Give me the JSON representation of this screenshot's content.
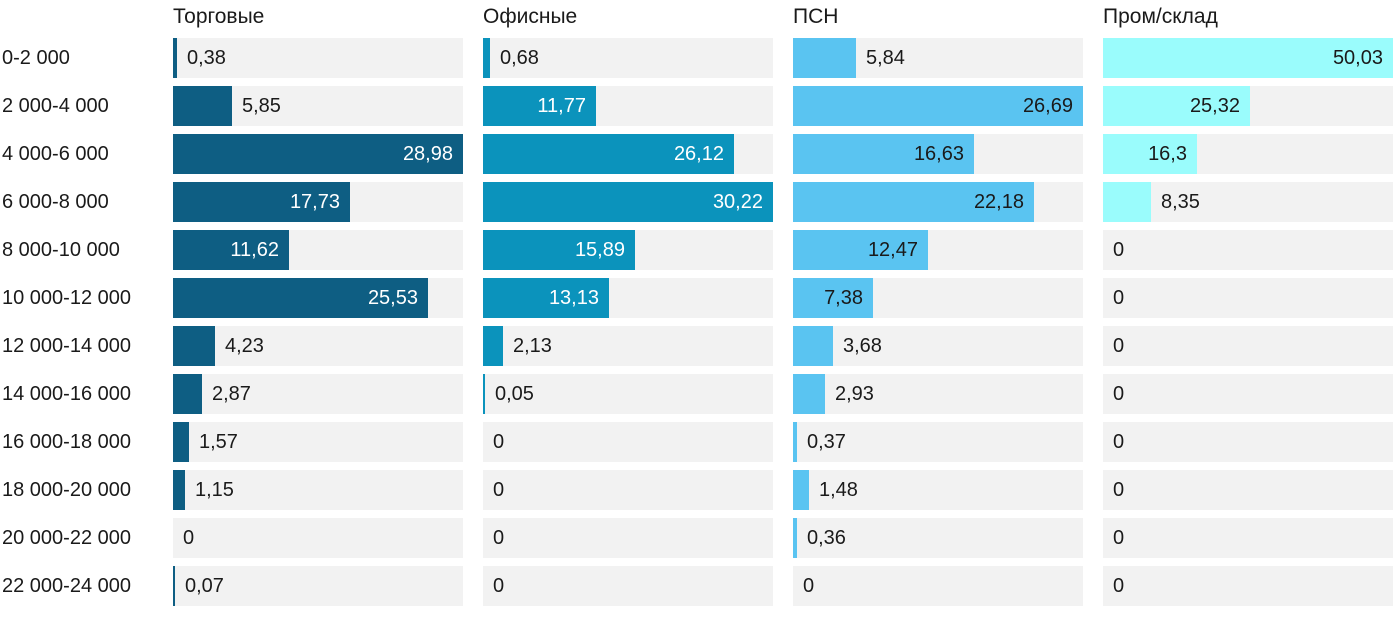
{
  "chart_data": {
    "type": "bar",
    "orientation": "horizontal",
    "title": "",
    "xlabel": "",
    "ylabel": "",
    "normalization": "per-column-max",
    "grid": false,
    "legend_position": "column-headers",
    "categories": [
      "0-2 000",
      "2 000-4 000",
      "4 000-6 000",
      "6 000-8 000",
      "8 000-10 000",
      "10 000-12 000",
      "12 000-14 000",
      "14 000-16 000",
      "16 000-18 000",
      "18 000-20 000",
      "20 000-22 000",
      "22 000-24 000"
    ],
    "series": [
      {
        "name": "Торговые",
        "color": "#0e5e83",
        "inside_label_color": "#ffffff",
        "values": [
          0.38,
          5.85,
          28.98,
          17.73,
          11.62,
          25.53,
          4.23,
          2.87,
          1.57,
          1.15,
          0,
          0.07
        ],
        "labels": [
          "0,38",
          "5,85",
          "28,98",
          "17,73",
          "11,62",
          "25,53",
          "4,23",
          "2,87",
          "1,57",
          "1,15",
          "0",
          "0,07"
        ]
      },
      {
        "name": "Офисные",
        "color": "#0b93bc",
        "inside_label_color": "#ffffff",
        "values": [
          0.68,
          11.77,
          26.12,
          30.22,
          15.89,
          13.13,
          2.13,
          0.05,
          0,
          0,
          0,
          0
        ],
        "labels": [
          "0,68",
          "11,77",
          "26,12",
          "30,22",
          "15,89",
          "13,13",
          "2,13",
          "0,05",
          "0",
          "0",
          "0",
          "0"
        ]
      },
      {
        "name": "ПСН",
        "color": "#5ac4f1",
        "inside_label_color": "#1a1a1a",
        "values": [
          5.84,
          26.69,
          16.63,
          22.18,
          12.47,
          7.38,
          3.68,
          2.93,
          0.37,
          1.48,
          0.36,
          0
        ],
        "labels": [
          "5,84",
          "26,69",
          "16,63",
          "22,18",
          "12,47",
          "7,38",
          "3,68",
          "2,93",
          "0,37",
          "1,48",
          "0,36",
          "0"
        ]
      },
      {
        "name": "Пром/склад",
        "color": "#9afcfc",
        "inside_label_color": "#1a1a1a",
        "values": [
          50.03,
          25.32,
          16.3,
          8.35,
          0,
          0,
          0,
          0,
          0,
          0,
          0,
          0
        ],
        "labels": [
          "50,03",
          "25,32",
          "16,3",
          "8,35",
          "0",
          "0",
          "0",
          "0",
          "0",
          "0",
          "0",
          "0"
        ]
      }
    ],
    "layout_colors": {
      "track_background": "#f2f2f2",
      "text": "#1a1a1a",
      "background": "#ffffff"
    }
  }
}
